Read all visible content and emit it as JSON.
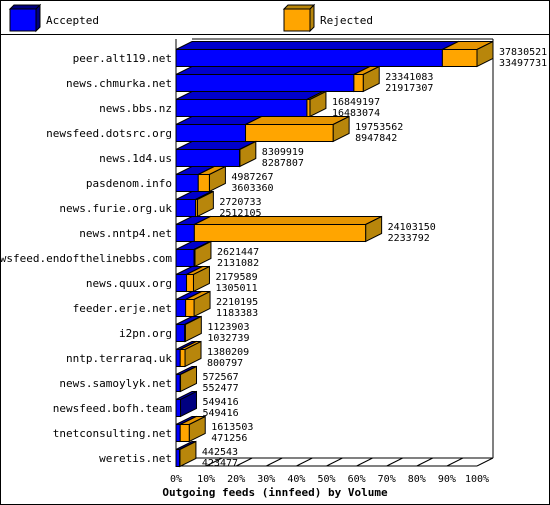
{
  "chart_data": {
    "type": "bar",
    "orientation": "horizontal",
    "stacked": true,
    "title": "Outgoing feeds (innfeed) by Volume",
    "xlim": [
      0,
      100
    ],
    "x_ticks": [
      "0%",
      "10%",
      "20%",
      "30%",
      "40%",
      "50%",
      "60%",
      "70%",
      "80%",
      "90%",
      "100%"
    ],
    "legend": {
      "placement": "top"
    },
    "colors": {
      "accepted": "#0000ff",
      "rejected": "#ffa500"
    },
    "series": [
      {
        "name": "Accepted",
        "values": [
          88.5,
          59.1,
          43.5,
          23.1,
          21.1,
          7.4,
          6.5,
          6.1,
          6.0,
          3.5,
          3.2,
          2.9,
          1.4,
          1.4,
          1.5,
          1.4,
          1.2
        ]
      },
      {
        "name": "Rejected",
        "values": [
          11.5,
          3.1,
          1.0,
          29.1,
          0.1,
          3.7,
          0.6,
          56.9,
          0.3,
          2.3,
          2.8,
          0.2,
          1.6,
          0.1,
          0.0,
          3.0,
          0.1
        ]
      }
    ],
    "categories": [
      "peer.alt119.net",
      "news.chmurka.net",
      "news.bbs.nz",
      "newsfeed.dotsrc.org",
      "news.1d4.us",
      "pasdenom.info",
      "news.furie.org.uk",
      "news.nntp4.net",
      "newsfeed.endofthelinebbs.com",
      "news.quux.org",
      "feeder.erje.net",
      "i2pn.org",
      "nntp.terraraq.uk",
      "news.samoylyk.net",
      "newsfeed.bofh.team",
      "tnetconsulting.net",
      "weretis.net"
    ],
    "labels_top": [
      "37830521",
      "23341083",
      "16849197",
      "19753562",
      "8309919",
      "4987267",
      "2720733",
      "24103150",
      "2621447",
      "2179589",
      "2210195",
      "1123903",
      "1380209",
      "572567",
      "549416",
      "1613503",
      "442543"
    ],
    "labels_bottom": [
      "33497731",
      "21917307",
      "16483074",
      "8947842",
      "8287807",
      "3603360",
      "2512105",
      "2233792",
      "2131082",
      "1305011",
      "1183383",
      "1032739",
      "800797",
      "552477",
      "549416",
      "471256",
      "423477"
    ]
  }
}
